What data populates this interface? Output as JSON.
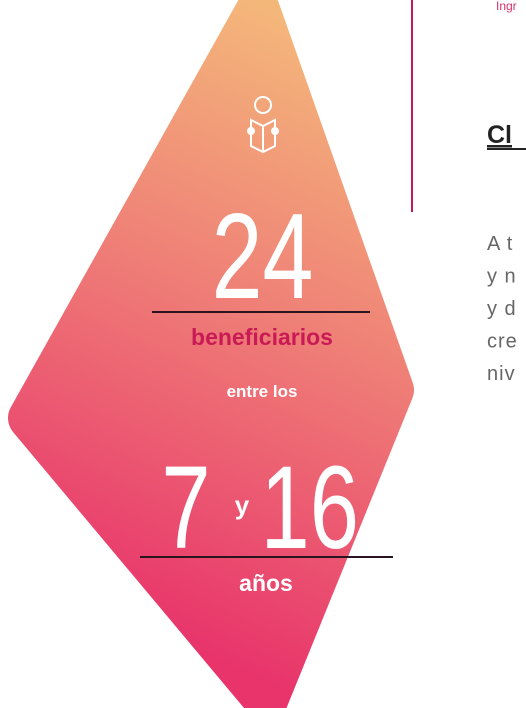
{
  "top_link": "Ingr",
  "heading": "Cl",
  "paragraph": [
    "A t",
    "y n",
    "y d",
    "cre",
    "niv"
  ],
  "badge": {
    "count": "24",
    "count_label": "beneficiarios",
    "range_intro": "entre los",
    "age_from": "7",
    "age_joiner": "y",
    "age_to": "16",
    "age_unit": "años"
  }
}
